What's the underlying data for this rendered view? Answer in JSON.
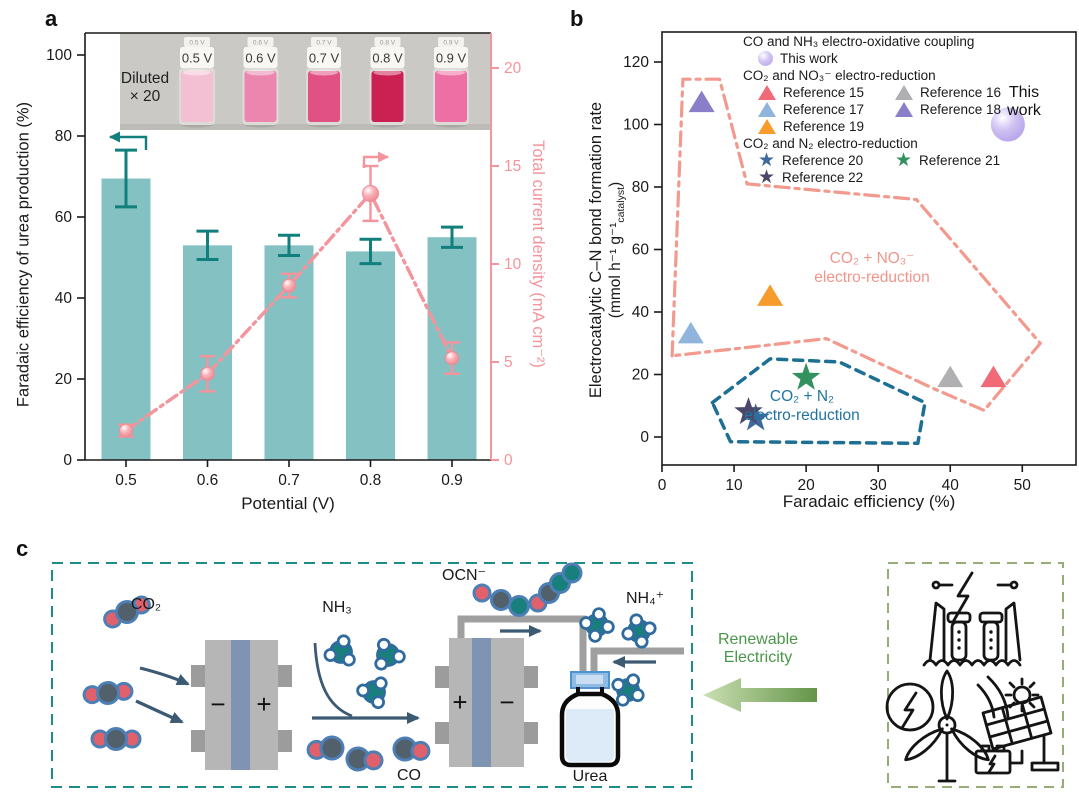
{
  "figure": {
    "a_label": "a",
    "b_label": "b",
    "c_label": "c"
  },
  "panel_a": {
    "x_axis": {
      "title": "Potential (V)"
    },
    "left_axis": {
      "title": "Faradaic efficiency of urea production (%)"
    },
    "right_axis": {
      "title": "Total current density (mA cm⁻²)"
    },
    "inset": {
      "dilution_line1": "Diluted",
      "dilution_line2": "× 20",
      "vials": [
        {
          "label": "0.5 V",
          "color": "#f2c0d2"
        },
        {
          "label": "0.6 V",
          "color": "#ec86ae"
        },
        {
          "label": "0.7 V",
          "color": "#e25183"
        },
        {
          "label": "0.8 V",
          "color": "#cb2052"
        },
        {
          "label": "0.9 V",
          "color": "#ee6fa3"
        }
      ]
    }
  },
  "panel_b": {
    "x_axis": {
      "title": "Faradaic efficiency (%)"
    },
    "y_axis": {
      "title": "Electrocatalytic C–N bond formation rate",
      "units_prefix": "(mmol h⁻¹ g⁻¹",
      "units_sub": "catalyst",
      "units_suffix": ")"
    },
    "annotation": "This work",
    "region_labels": [
      {
        "line1": "CO₂ + NO₃⁻",
        "line2": "electro-reduction"
      },
      {
        "line1": "CO₂ + N₂",
        "line2": "electro-reduction"
      }
    ],
    "legend": {
      "groups": [
        {
          "header": "CO and NH₃ electro-oxidative coupling",
          "entries": [
            {
              "label": "This work",
              "marker": "sphere",
              "color": "#c9b9f1"
            }
          ]
        },
        {
          "header": "CO₂ and NO₃⁻ electro-reduction",
          "entries": [
            {
              "label": "Reference 15",
              "marker": "triangle",
              "color": "#f06b77"
            },
            {
              "label": "Reference 16",
              "marker": "triangle",
              "color": "#b0b0b2"
            },
            {
              "label": "Reference 17",
              "marker": "triangle",
              "color": "#90b4dc"
            },
            {
              "label": "Reference 18",
              "marker": "triangle",
              "color": "#8b7ec8"
            },
            {
              "label": "Reference 19",
              "marker": "triangle",
              "color": "#f89b2d"
            }
          ]
        },
        {
          "header": "CO₂ and N₂ electro-reduction",
          "entries": [
            {
              "label": "Reference 20",
              "marker": "star",
              "color": "#3e699e"
            },
            {
              "label": "Reference 21",
              "marker": "star",
              "color": "#33915e"
            },
            {
              "label": "Reference 22",
              "marker": "star",
              "color": "#4a4769"
            }
          ]
        }
      ]
    }
  },
  "panel_c": {
    "labels": {
      "co2": "CO₂",
      "nh3": "NH₃",
      "co": "CO",
      "ocn": "OCN⁻",
      "nh4": "NH₄⁺",
      "urea": "Urea",
      "renewable_line1": "Renewable",
      "renewable_line2": "Electricity"
    },
    "cell1": {
      "left_electrode": "−",
      "right_electrode": "+"
    },
    "cell2": {
      "left_electrode": "+",
      "right_electrode": "−"
    },
    "icons": [
      "hydroelectric-dam-icon",
      "lightning-icon",
      "wind-turbine-icon",
      "sun-icon",
      "solar-panel-icon",
      "battery-icon"
    ]
  },
  "chart_data": [
    {
      "panel": "a",
      "type": "bar",
      "categories": [
        "0.5",
        "0.6",
        "0.7",
        "0.8",
        "0.9"
      ],
      "xlabel": "Potential (V)",
      "series": [
        {
          "name": "Faradaic efficiency of urea production (%)",
          "type": "bar",
          "axis": "left",
          "color": "#84c1c2",
          "values": [
            69.5,
            53,
            53,
            51.5,
            55
          ],
          "errors": [
            7,
            3.5,
            2.5,
            3,
            2.5
          ]
        },
        {
          "name": "Total current density (mA cm⁻²)",
          "type": "line",
          "axis": "right",
          "color": "#f4949c",
          "values": [
            1.5,
            4.4,
            8.9,
            13.6,
            5.2
          ],
          "errors": [
            0.3,
            0.9,
            0.6,
            1.4,
            0.8
          ]
        }
      ],
      "left_axis": {
        "label": "Faradaic efficiency of urea production (%)",
        "ticks": [
          0,
          20,
          40,
          60,
          80,
          100
        ],
        "range": [
          0,
          105.4
        ]
      },
      "right_axis": {
        "label": "Total current density (mA cm⁻²)",
        "ticks": [
          0,
          5,
          10,
          15,
          20
        ],
        "range": [
          0,
          21.8
        ]
      }
    },
    {
      "panel": "b",
      "type": "scatter",
      "xlabel": "Faradaic efficiency (%)",
      "ylabel": "Electrocatalytic C–N bond formation rate (mmol h⁻¹ g⁻¹ catalyst)",
      "xlim": [
        0,
        57.5
      ],
      "ylim": [
        -9,
        129.6
      ],
      "x_ticks": [
        0,
        10,
        20,
        30,
        40,
        50
      ],
      "y_ticks": [
        0,
        20,
        40,
        60,
        80,
        100,
        120
      ],
      "points": [
        {
          "label": "This work",
          "group": "CO and NH₃ electro-oxidative coupling",
          "marker": "sphere",
          "color": "#c9b9f1",
          "x": 48,
          "y": 100
        },
        {
          "label": "Reference 15",
          "group": "CO₂ and NO₃⁻ electro-reduction",
          "marker": "triangle",
          "color": "#f06b77",
          "x": 46,
          "y": 19
        },
        {
          "label": "Reference 16",
          "group": "CO₂ and NO₃⁻ electro-reduction",
          "marker": "triangle",
          "color": "#b0b0b2",
          "x": 40,
          "y": 19
        },
        {
          "label": "Reference 17",
          "group": "CO₂ and NO₃⁻ electro-reduction",
          "marker": "triangle",
          "color": "#90b4dc",
          "x": 4,
          "y": 33
        },
        {
          "label": "Reference 18",
          "group": "CO₂ and NO₃⁻ electro-reduction",
          "marker": "triangle",
          "color": "#8b7ec8",
          "x": 5.5,
          "y": 107
        },
        {
          "label": "Reference 19",
          "group": "CO₂ and NO₃⁻ electro-reduction",
          "marker": "triangle",
          "color": "#f89b2d",
          "x": 15,
          "y": 45
        },
        {
          "label": "Reference 20",
          "group": "CO₂ and N₂ electro-reduction",
          "marker": "star",
          "color": "#3e699e",
          "x": 13,
          "y": 6
        },
        {
          "label": "Reference 21",
          "group": "CO₂ and N₂ electro-reduction",
          "marker": "star",
          "color": "#33915e",
          "x": 20,
          "y": 19
        },
        {
          "label": "Reference 22",
          "group": "CO₂ and N₂ electro-reduction",
          "marker": "star",
          "color": "#4a4769",
          "x": 12,
          "y": 8
        }
      ],
      "regions": [
        {
          "name": "CO₂ + NO₃⁻ electro-reduction",
          "style": "dash-dot",
          "color": "#f29a8e",
          "vertices": [
            [
              1.4,
              26
            ],
            [
              2.9,
              114.5
            ],
            [
              8,
              114.5
            ],
            [
              11.8,
              81
            ],
            [
              35.3,
              76
            ],
            [
              52.5,
              30
            ],
            [
              44.7,
              8.5
            ],
            [
              37.7,
              15.5
            ],
            [
              22.8,
              31.5
            ]
          ]
        },
        {
          "name": "CO₂ + N₂ electro-reduction",
          "style": "dashed",
          "color": "#1d6f94",
          "vertices": [
            [
              7,
              11
            ],
            [
              15,
              25
            ],
            [
              24.6,
              24
            ],
            [
              36.5,
              11
            ],
            [
              35.5,
              -2
            ],
            [
              9.5,
              -1.5
            ]
          ]
        }
      ]
    }
  ],
  "colors": {
    "bar_teal": "#84c1c2",
    "error_teal": "#11807c",
    "pink": "#f4949c",
    "polygon_pink": "#f29a8e",
    "polygon_blue": "#1d6f94",
    "sphere_purple": "#c9b9f1",
    "box_teal": "#1f8c8c",
    "box_green": "#96ad78",
    "arrow_dark": "#3d5a73",
    "renewable_green": "#4a9649"
  }
}
